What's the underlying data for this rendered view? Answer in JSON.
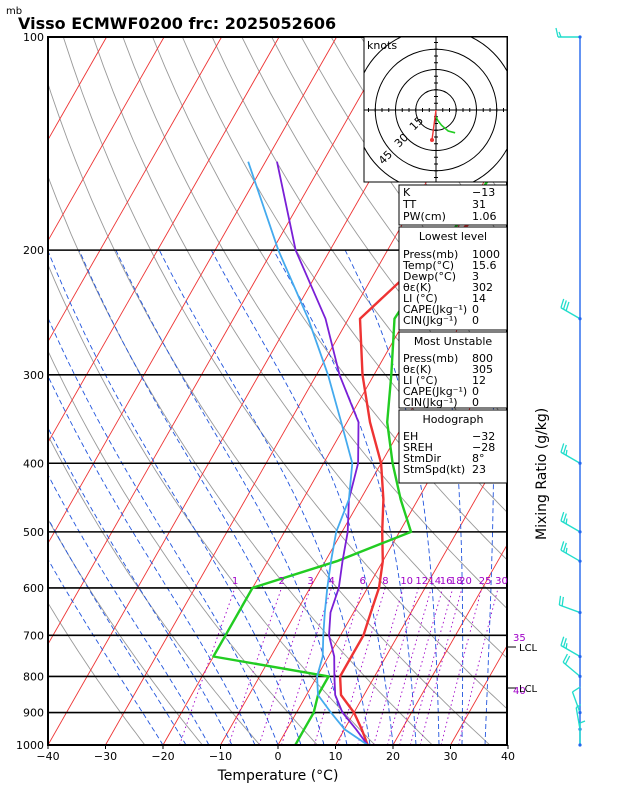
{
  "header": {
    "mb_unit": "mb",
    "title": "Visso ECMWF0200  frc: 2025052606"
  },
  "axes": {
    "xlabel": "Temperature (°C)",
    "ylabel_right": "Mixing Ratio (g/kg)",
    "x_ticks": [
      "−40",
      "−30",
      "−20",
      "−10",
      "0",
      "10",
      "20",
      "30",
      "40"
    ],
    "x_tick_values": [
      -40,
      -30,
      -20,
      -10,
      0,
      10,
      20,
      30,
      40
    ],
    "p_ticks": [
      "100",
      "200",
      "300",
      "400",
      "500",
      "600",
      "700",
      "800",
      "900",
      "1000"
    ],
    "p_tick_values": [
      100,
      200,
      300,
      400,
      500,
      600,
      700,
      800,
      900,
      1000
    ]
  },
  "mixing_ratio_labels": [
    {
      "t": "1",
      "v": 1
    },
    {
      "t": "2",
      "v": 2
    },
    {
      "t": "3",
      "v": 3
    },
    {
      "t": "4",
      "v": 4
    },
    {
      "t": "6",
      "v": 6
    },
    {
      "t": "8",
      "v": 8
    },
    {
      "t": "10",
      "v": 10
    },
    {
      "t": "12",
      "v": 12
    },
    {
      "t": "14",
      "v": 14
    },
    {
      "t": "16",
      "v": 16
    },
    {
      "t": "18",
      "v": 18
    },
    {
      "t": "20",
      "v": 20
    },
    {
      "t": "25",
      "v": 25
    },
    {
      "t": "30",
      "v": 30
    }
  ],
  "side_labels": {
    "v35": "35",
    "v40": "40",
    "lcl_upper": "LCL",
    "lcl_lower": "LCL"
  },
  "hodograph": {
    "units": "knots",
    "rings": [
      "15",
      "30",
      "45"
    ]
  },
  "indices": {
    "k_label": "K",
    "k_value": "−13",
    "tt_label": "TT",
    "tt_value": "31",
    "pw_label": "PW(cm)",
    "pw_value": "1.06"
  },
  "lowest_level": {
    "heading": "Lowest level",
    "rows": [
      {
        "label": "Press(mb)",
        "value": "1000"
      },
      {
        "label": "Temp(°C)",
        "value": "15.6"
      },
      {
        "label": "Dewp(°C)",
        "value": "3"
      },
      {
        "label": "θε(K)",
        "value": "302"
      },
      {
        "label": "LI (°C)",
        "value": "14"
      },
      {
        "label": "CAPE(Jkg⁻¹)",
        "value": "0"
      },
      {
        "label": "CIN(Jkg⁻¹)",
        "value": "0"
      }
    ]
  },
  "most_unstable": {
    "heading": "Most Unstable",
    "rows": [
      {
        "label": "Press(mb)",
        "value": "800"
      },
      {
        "label": "θε(K)",
        "value": "305"
      },
      {
        "label": "LI (°C)",
        "value": "12"
      },
      {
        "label": "CAPE(Jkg⁻¹)",
        "value": "0"
      },
      {
        "label": "CIN(Jkg⁻¹)",
        "value": "0"
      }
    ]
  },
  "hodograph_panel": {
    "heading": "Hodograph",
    "rows": [
      {
        "label": "EH",
        "value": "−32"
      },
      {
        "label": "SREH",
        "value": "−28"
      },
      {
        "label": "StmDir",
        "value": "8°"
      },
      {
        "label": "StmSpd(kt)",
        "value": "23"
      }
    ]
  },
  "colors": {
    "temperature": "#ee3333",
    "dewpoint": "#22cc22",
    "parcel": "#7a1fd6",
    "parcel_moist": "#44aaee",
    "isotherm": "#ee3333",
    "dry_adiabat": "#999999",
    "moist_adiabat": "#2255dd",
    "mixing_ratio": "#a000c8",
    "wind": "#22ddcc",
    "staff": "#2266ee"
  },
  "chart_data": {
    "type": "line",
    "x_range": [
      -40,
      40
    ],
    "p_range": [
      100,
      1000
    ],
    "series": [
      {
        "key": "temperature",
        "p": [
          1000,
          950,
          900,
          850,
          800,
          750,
          700,
          650,
          600,
          550,
          500,
          450,
          400,
          350,
          300,
          250,
          200,
          150,
          100
        ],
        "t": [
          15.6,
          13,
          10,
          6,
          4,
          4,
          4,
          3,
          2,
          0,
          -3,
          -6,
          -10,
          -16,
          -22,
          -28,
          -22,
          -10,
          2
        ]
      },
      {
        "key": "dewpoint",
        "p": [
          1000,
          950,
          900,
          850,
          800,
          750,
          700,
          650,
          600,
          550,
          500,
          450,
          400,
          350,
          300,
          250,
          200,
          150,
          100
        ],
        "t": [
          3,
          3,
          3,
          2,
          2,
          -20,
          -20,
          -20,
          -20,
          -8,
          2,
          -3,
          -8,
          -13,
          -17,
          -22,
          -21,
          -19,
          -16
        ]
      },
      {
        "key": "parcel",
        "p": [
          1000,
          950,
          900,
          850,
          800,
          750,
          700,
          650,
          600,
          550,
          500,
          450,
          400,
          350,
          300,
          250,
          200,
          150
        ],
        "t": [
          15.6,
          12,
          8,
          5,
          3,
          1,
          -2,
          -4,
          -5,
          -7,
          -9,
          -12,
          -14,
          -18,
          -26,
          -34,
          -46,
          -58
        ]
      },
      {
        "key": "parcel_moist",
        "p": [
          1000,
          950,
          900,
          850,
          800,
          750,
          700,
          650,
          600,
          550,
          500,
          450,
          400,
          350,
          300,
          250,
          200,
          150
        ],
        "t": [
          15.6,
          10,
          6,
          2,
          0,
          -1,
          -3,
          -5,
          -7,
          -9,
          -11,
          -12,
          -15,
          -21,
          -28,
          -37,
          -49,
          -63
        ]
      }
    ],
    "winds": [
      {
        "p": 100,
        "dir": 270,
        "spd": 15
      },
      {
        "p": 250,
        "dir": 300,
        "spd": 30
      },
      {
        "p": 400,
        "dir": 300,
        "spd": 25
      },
      {
        "p": 500,
        "dir": 300,
        "spd": 25
      },
      {
        "p": 550,
        "dir": 300,
        "spd": 25
      },
      {
        "p": 650,
        "dir": 290,
        "spd": 20
      },
      {
        "p": 750,
        "dir": 300,
        "spd": 25
      },
      {
        "p": 800,
        "dir": 310,
        "spd": 20
      },
      {
        "p": 900,
        "dir": 340,
        "spd": 10
      },
      {
        "p": 950,
        "dir": 350,
        "spd": 5
      },
      {
        "p": 1000,
        "dir": 0,
        "spd": 5
      }
    ],
    "hodograph_trace": [
      {
        "dir": 0,
        "spd": 5
      },
      {
        "dir": 350,
        "spd": 8
      },
      {
        "dir": 340,
        "spd": 12
      },
      {
        "dir": 330,
        "spd": 18
      },
      {
        "dir": 320,
        "spd": 22
      }
    ]
  }
}
